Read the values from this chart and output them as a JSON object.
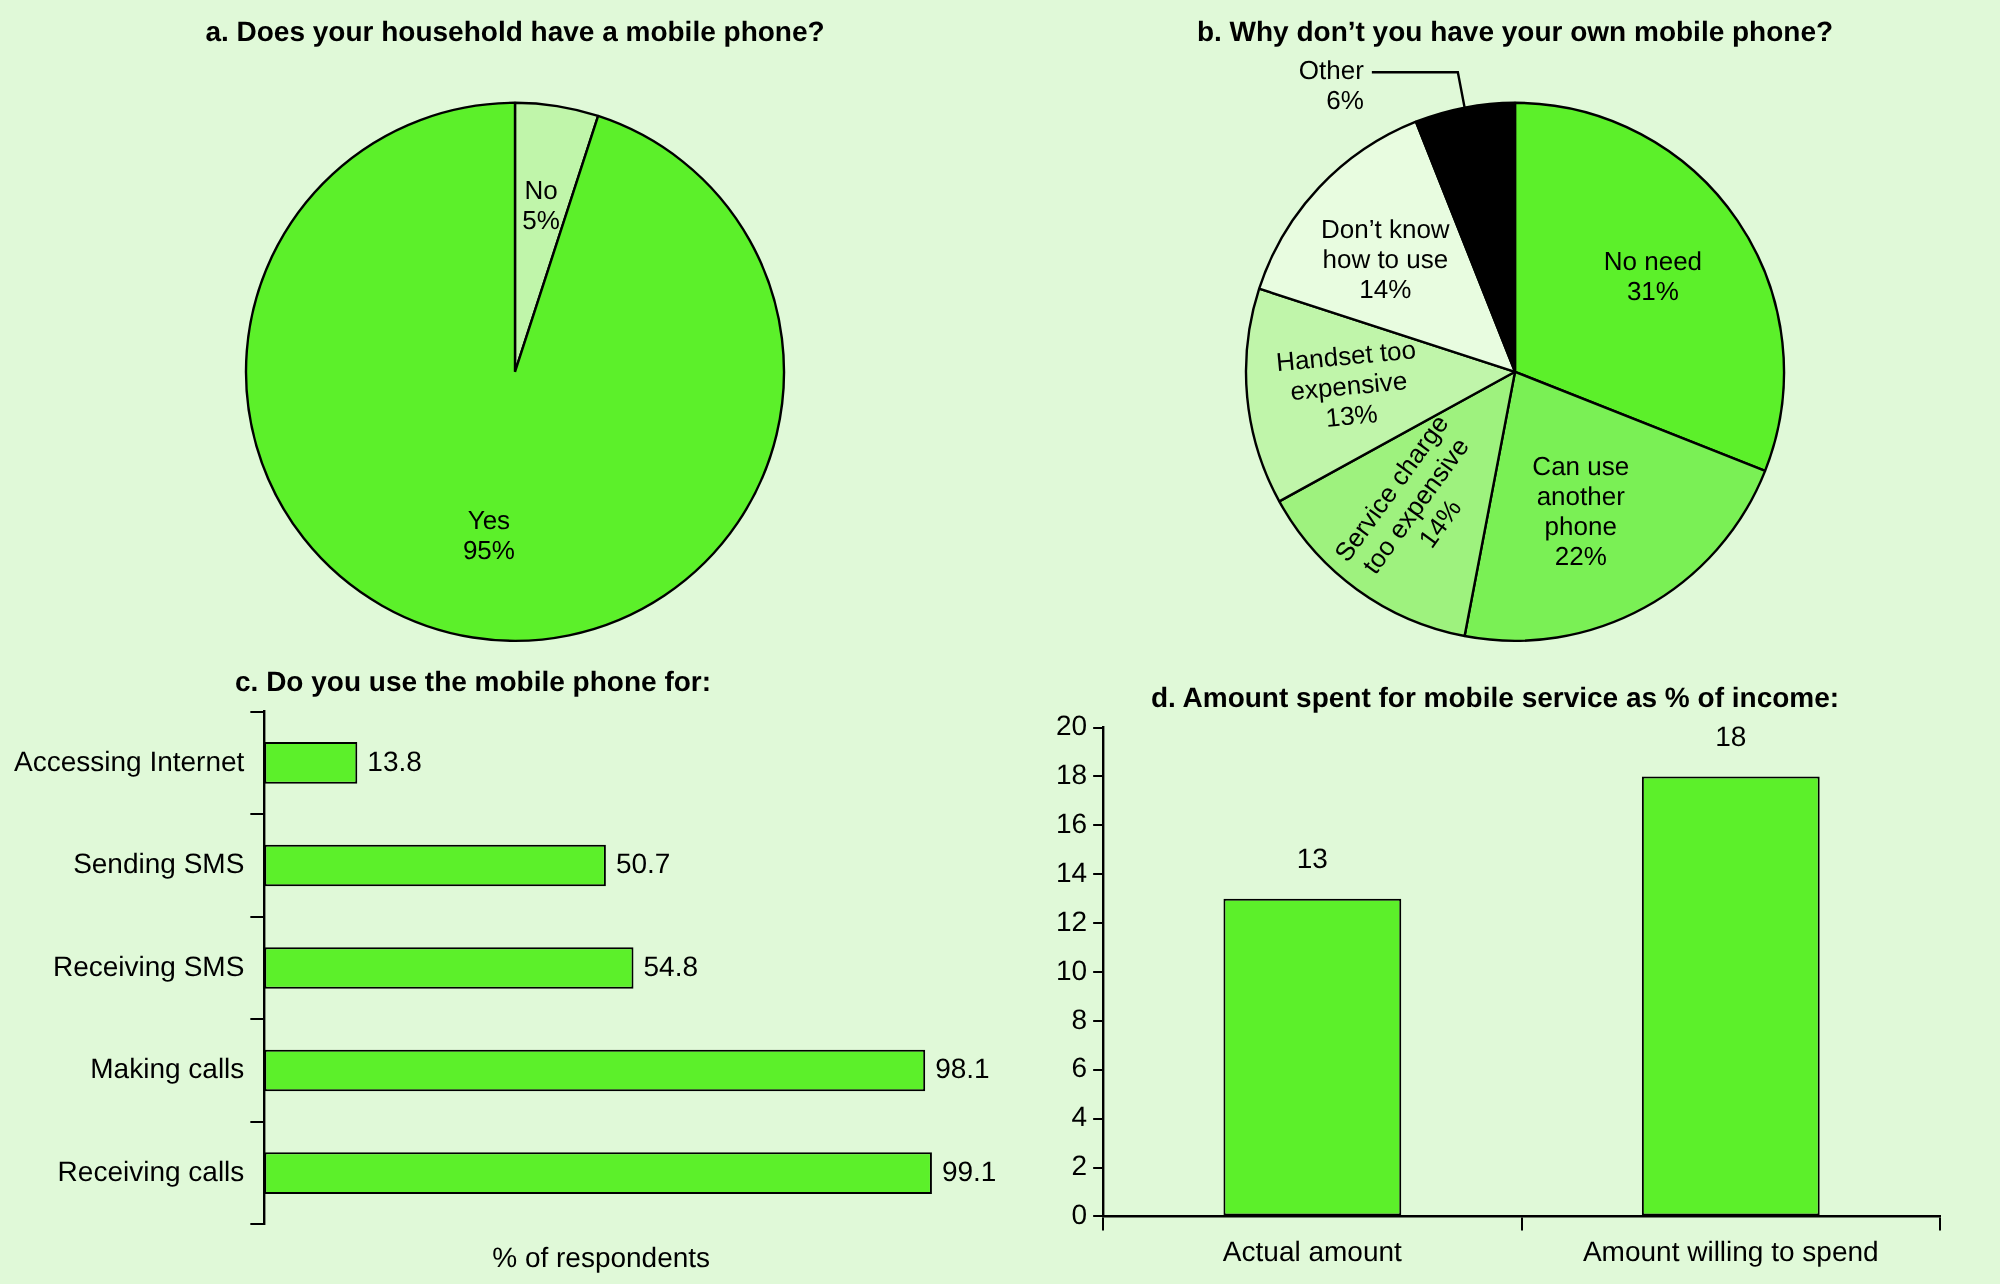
{
  "chart_data": [
    {
      "type": "pie",
      "title": "a. Does your household have a mobile phone?",
      "categories": [
        "No",
        "Yes"
      ],
      "values": [
        5,
        95
      ],
      "colors": [
        "#c0f5aa",
        "#5cf02a"
      ],
      "value_labels": [
        "5%",
        "95%"
      ],
      "legend": false
    },
    {
      "type": "pie",
      "title": "b. Why don’t you have your own mobile phone?",
      "categories": [
        "No need",
        "Can use another phone",
        "Service charge too expensive",
        "Handset too expensive",
        "Don’t know how to use",
        "Other"
      ],
      "values": [
        31,
        22,
        14,
        13,
        14,
        6
      ],
      "colors": [
        "#5cf02a",
        "#7af055",
        "#9ef27e",
        "#c0f5aa",
        "#e8fce0",
        "#000000"
      ],
      "value_labels": [
        "31%",
        "22%",
        "14%",
        "13%",
        "14%",
        "6%"
      ],
      "legend": false
    },
    {
      "type": "bar",
      "orientation": "horizontal",
      "title": "c. Do you use the mobile phone for:",
      "xlabel": "% of respondents",
      "categories": [
        "Accessing Internet",
        "Sending SMS",
        "Receiving SMS",
        "Making calls",
        "Receiving calls"
      ],
      "values": [
        13.8,
        50.7,
        54.8,
        98.1,
        99.1
      ],
      "color": "#5cf02a",
      "xlim": [
        0,
        100
      ],
      "tick_labels": "y",
      "data_labels": true,
      "grid": false,
      "legend": false
    },
    {
      "type": "bar",
      "title": "d. Amount spent for mobile service as % of income:",
      "categories": [
        "Actual amount",
        "Amount willing to spend"
      ],
      "values": [
        13,
        18
      ],
      "color": "#5cf02a",
      "ylim": [
        0,
        20
      ],
      "yticks": [
        0,
        2,
        4,
        6,
        8,
        10,
        12,
        14,
        16,
        18,
        20
      ],
      "data_labels": true,
      "grid": false,
      "legend": false
    }
  ]
}
